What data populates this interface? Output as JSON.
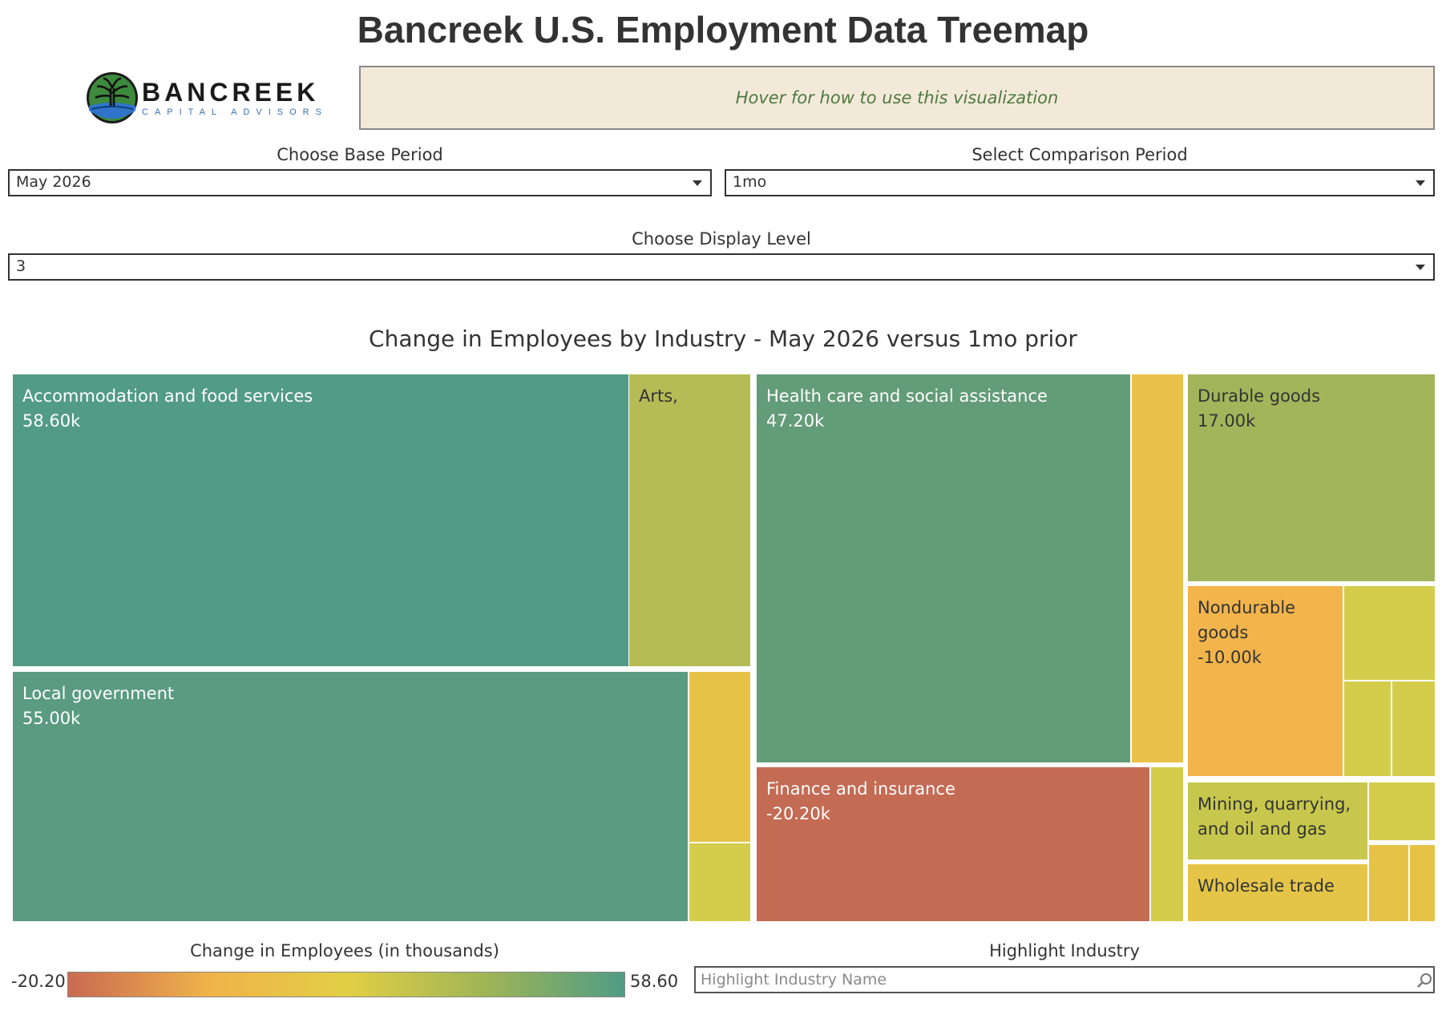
{
  "page": {
    "title": "Bancreek U.S. Employment Data Treemap"
  },
  "logo": {
    "wordmark": "BANCREEK",
    "tagline": "CAPITAL ADVISORS",
    "icon": "tree-logo-icon"
  },
  "help": {
    "text": "Hover for how to use this visualization"
  },
  "filters": {
    "base_period": {
      "label": "Choose Base Period",
      "value": "May 2026"
    },
    "comparison_period": {
      "label": "Select Comparison Period",
      "value": "1mo"
    },
    "display_level": {
      "label": "Choose Display Level",
      "value": "3"
    }
  },
  "colors": {
    "low": "#c96a52",
    "mid_low": "#f0b24a",
    "mid": "#e2cf45",
    "mid_high": "#9fb556",
    "high": "#4f9c86",
    "accommodation": "#529b85",
    "arts": "#b6bc55",
    "local_government": "#5a9b82",
    "health_care": "#639c78",
    "durable_goods": "#a3b55a",
    "nondurable_goods": "#f2b44b",
    "finance": "#c46b54",
    "mining": "#c7c74d",
    "wholesale": "#e4c547",
    "small_yellow": "#e6c247",
    "small_lime": "#d4cd4b",
    "small_orange_yellow": "#eac249"
  },
  "chart_data": {
    "type": "treemap",
    "title": "Change in Employees by Industry - May 2026 versus 1mo prior",
    "value_unit": "thousands",
    "color_scale": {
      "title": "Change in Employees (in thousands)",
      "min": -20.2,
      "max": 58.6,
      "min_label": "-20.20",
      "max_label": "58.60"
    },
    "labeled_cells": [
      {
        "name": "Accommodation and food services",
        "label": "58.60k",
        "value": 58.6
      },
      {
        "name": "Arts,",
        "label": "",
        "value": null
      },
      {
        "name": "Local government",
        "label": "55.00k",
        "value": 55.0
      },
      {
        "name": "Health care and social assistance",
        "label": "47.20k",
        "value": 47.2
      },
      {
        "name": "Finance and insurance",
        "label": "-20.20k",
        "value": -20.2
      },
      {
        "name": "Durable goods",
        "label": "17.00k",
        "value": 17.0
      },
      {
        "name": "Nondurable goods",
        "label": "-10.00k",
        "value": -10.0
      },
      {
        "name": "Mining, quarrying, and oil and gas",
        "label": "",
        "value": null
      },
      {
        "name": "Wholesale trade",
        "label": "",
        "value": null
      }
    ]
  },
  "highlight": {
    "label": "Highlight Industry",
    "placeholder": "Highlight Industry Name",
    "icon": "search-icon"
  }
}
